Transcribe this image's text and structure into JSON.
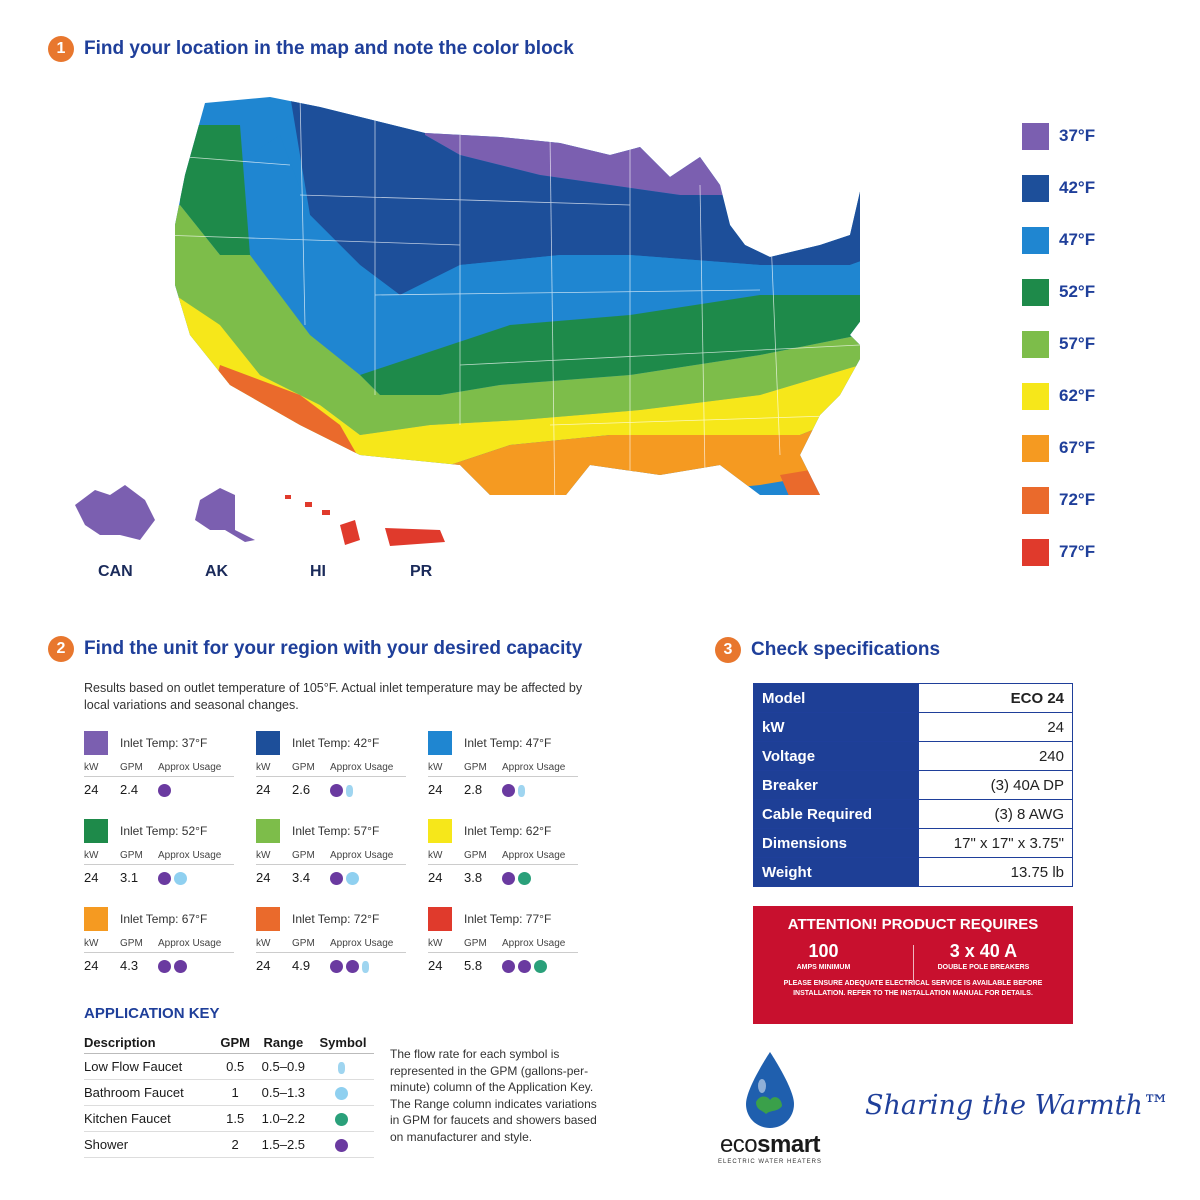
{
  "steps": {
    "s1": {
      "num": "1",
      "title": "Find your location in the map and note the color block"
    },
    "s2": {
      "num": "2",
      "title": "Find the unit for your region with your desired capacity"
    },
    "s3": {
      "num": "3",
      "title": "Check specifications"
    }
  },
  "legend": [
    {
      "label": "37°F",
      "color": "#7b5fb0"
    },
    {
      "label": "42°F",
      "color": "#1d4f9a"
    },
    {
      "label": "47°F",
      "color": "#1f86d1"
    },
    {
      "label": "52°F",
      "color": "#1e8a4a"
    },
    {
      "label": "57°F",
      "color": "#7dbd4a"
    },
    {
      "label": "62°F",
      "color": "#f6e71a"
    },
    {
      "label": "67°F",
      "color": "#f59a21"
    },
    {
      "label": "72°F",
      "color": "#ea6a2c"
    },
    {
      "label": "77°F",
      "color": "#e03a2c"
    }
  ],
  "territories": [
    "CAN",
    "AK",
    "HI",
    "PR"
  ],
  "intro": "Results based on outlet temperature of 105°F. Actual inlet temperature may be affected by local variations and seasonal changes.",
  "region_cols": {
    "kw": "kW",
    "gpm": "GPM",
    "usage": "Approx Usage"
  },
  "regions": [
    {
      "title": "Inlet Temp: 37°F",
      "kw": "24",
      "gpm": "2.4"
    },
    {
      "title": "Inlet Temp: 42°F",
      "kw": "24",
      "gpm": "2.6"
    },
    {
      "title": "Inlet Temp: 47°F",
      "kw": "24",
      "gpm": "2.8"
    },
    {
      "title": "Inlet Temp: 52°F",
      "kw": "24",
      "gpm": "3.1"
    },
    {
      "title": "Inlet Temp: 57°F",
      "kw": "24",
      "gpm": "3.4"
    },
    {
      "title": "Inlet Temp: 62°F",
      "kw": "24",
      "gpm": "3.8"
    },
    {
      "title": "Inlet Temp: 67°F",
      "kw": "24",
      "gpm": "4.3"
    },
    {
      "title": "Inlet Temp: 72°F",
      "kw": "24",
      "gpm": "4.9"
    },
    {
      "title": "Inlet Temp: 77°F",
      "kw": "24",
      "gpm": "5.8"
    }
  ],
  "app_key": {
    "title": "APPLICATION KEY",
    "headers": {
      "desc": "Description",
      "gpm": "GPM",
      "range": "Range",
      "symbol": "Symbol"
    },
    "rows": [
      {
        "desc": "Low Flow Faucet",
        "gpm": "0.5",
        "range": "0.5–0.9"
      },
      {
        "desc": "Bathroom Faucet",
        "gpm": "1",
        "range": "0.5–1.3"
      },
      {
        "desc": "Kitchen Faucet",
        "gpm": "1.5",
        "range": "1.0–2.2"
      },
      {
        "desc": "Shower",
        "gpm": "2",
        "range": "1.5–2.5"
      }
    ],
    "note": "The flow rate for each symbol is represented in the GPM (gallons-per-minute) column of the Application Key. The Range column indicates variations in GPM for faucets and showers based on manufacturer and style."
  },
  "specs": [
    {
      "k": "Model",
      "v": "ECO 24"
    },
    {
      "k": "kW",
      "v": "24"
    },
    {
      "k": "Voltage",
      "v": "240"
    },
    {
      "k": "Breaker",
      "v": "(3) 40A DP"
    },
    {
      "k": "Cable Required",
      "v": "(3) 8 AWG"
    },
    {
      "k": "Dimensions",
      "v": "17\" x 17\" x 3.75\""
    },
    {
      "k": "Weight",
      "v": "13.75 lb"
    }
  ],
  "attention": {
    "title": "ATTENTION! PRODUCT REQUIRES",
    "amps": "100",
    "amps_label": "AMPS MINIMUM",
    "breakers": "3 x 40 A",
    "breakers_label": "DOUBLE POLE BREAKERS",
    "fine": "PLEASE ENSURE ADEQUATE ELECTRICAL SERVICE IS AVAILABLE BEFORE INSTALLATION. REFER TO THE INSTALLATION MANUAL FOR DETAILS."
  },
  "brand": {
    "eco": "eco",
    "smart": "smart",
    "tag": "ELECTRIC WATER HEATERS",
    "tagline": "Sharing the Warmth™"
  }
}
